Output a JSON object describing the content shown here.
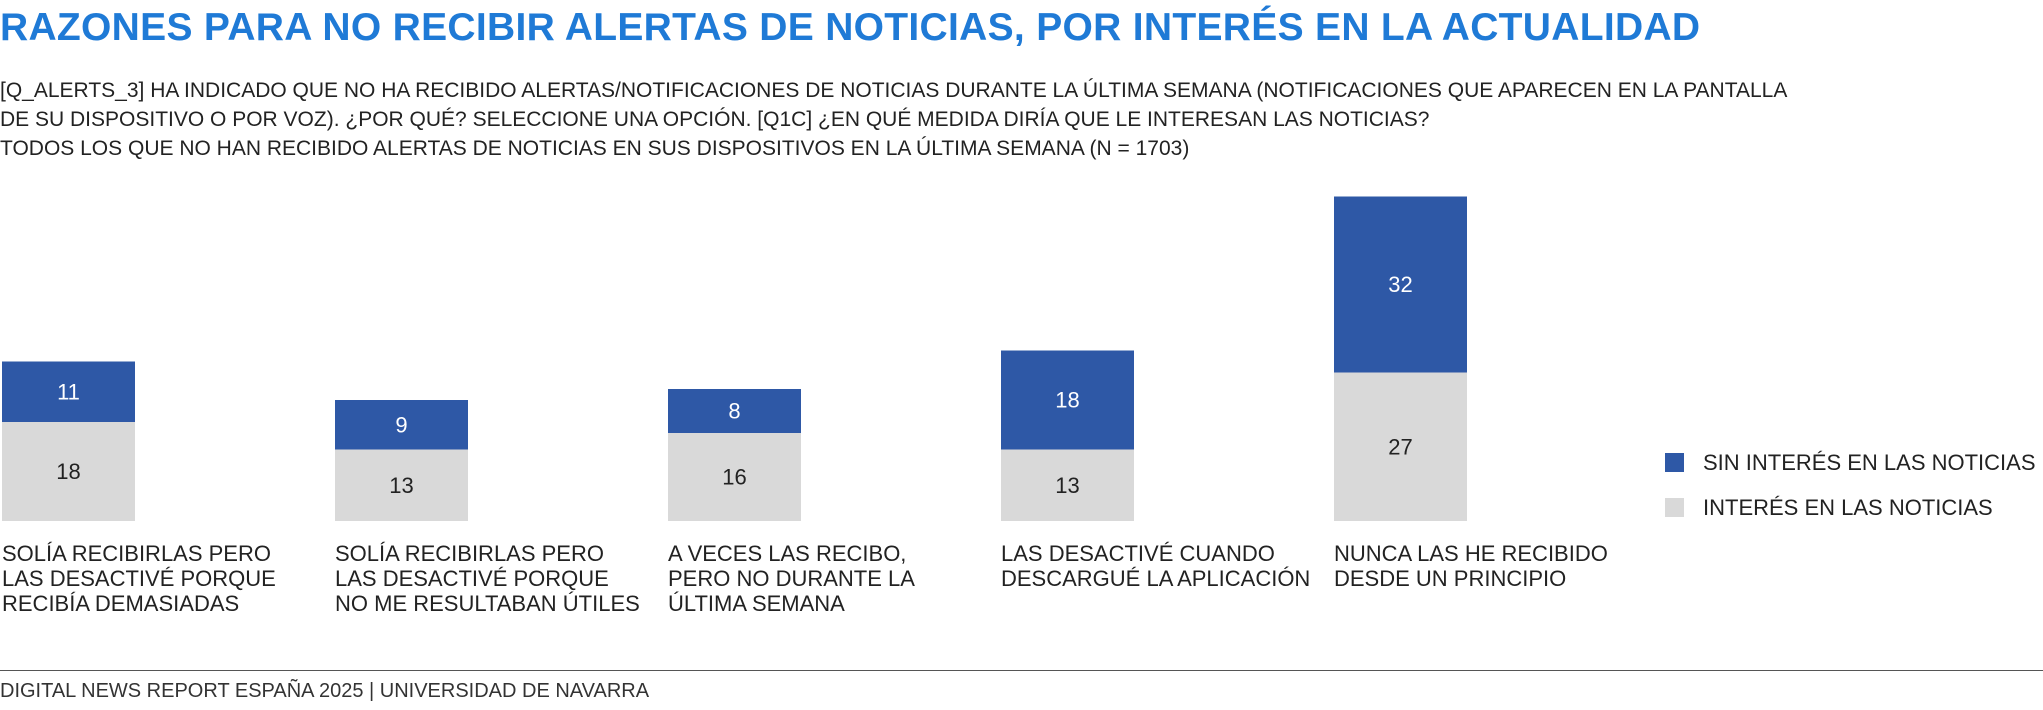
{
  "title": "RAZONES PARA NO RECIBIR ALERTAS DE NOTICIAS, POR INTERÉS EN LA ACTUALIDAD",
  "subtitle_lines": [
    "[Q_ALERTS_3] HA INDICADO QUE NO HA RECIBIDO ALERTAS/NOTIFICACIONES DE NOTICIAS DURANTE LA ÚLTIMA SEMANA (NOTIFICACIONES QUE APARECEN EN LA PANTALLA",
    "DE SU DISPOSITIVO O POR VOZ). ¿POR QUÉ? SELECCIONE UNA OPCIÓN. [Q1C] ¿EN QUÉ MEDIDA DIRÍA QUE LE INTERESAN LAS NOTICIAS?",
    "TODOS LOS QUE NO HAN RECIBIDO ALERTAS DE NOTICIAS EN SUS DISPOSITIVOS EN LA ÚLTIMA SEMANA (N = 1703)"
  ],
  "footer": "DIGITAL NEWS REPORT ESPAÑA 2025 | UNIVERSIDAD DE NAVARRA",
  "colors": {
    "title": "#1f7ad6",
    "sin_interes": "#2e58a6",
    "interes": "#d9d9d9"
  },
  "chart_data": {
    "type": "bar",
    "stacked": true,
    "categories": [
      "SOLÍA RECIBIRLAS PERO\nLAS DESACTIVÉ PORQUE\nRECIBÍA DEMASIADAS",
      "SOLÍA RECIBIRLAS PERO\nLAS DESACTIVÉ PORQUE\nNO ME RESULTABAN ÚTILES",
      "A VECES LAS RECIBO,\nPERO NO DURANTE LA\nÚLTIMA SEMANA",
      "LAS DESACTIVÉ CUANDO\nDESCARGUÉ LA APLICACIÓN",
      "NUNCA LAS HE RECIBIDO\nDESDE UN PRINCIPIO"
    ],
    "series": [
      {
        "name": "INTERÉS EN LAS NOTICIAS",
        "values": [
          18,
          13,
          16,
          13,
          27
        ],
        "color": "#d9d9d9"
      },
      {
        "name": "SIN INTERÉS EN LAS NOTICIAS",
        "values": [
          11,
          9,
          8,
          18,
          32
        ],
        "color": "#2e58a6"
      }
    ],
    "legend": [
      "SIN INTERÉS EN LAS NOTICIAS",
      "INTERÉS EN LAS NOTICIAS"
    ],
    "legend_position": "right",
    "grid": false
  }
}
